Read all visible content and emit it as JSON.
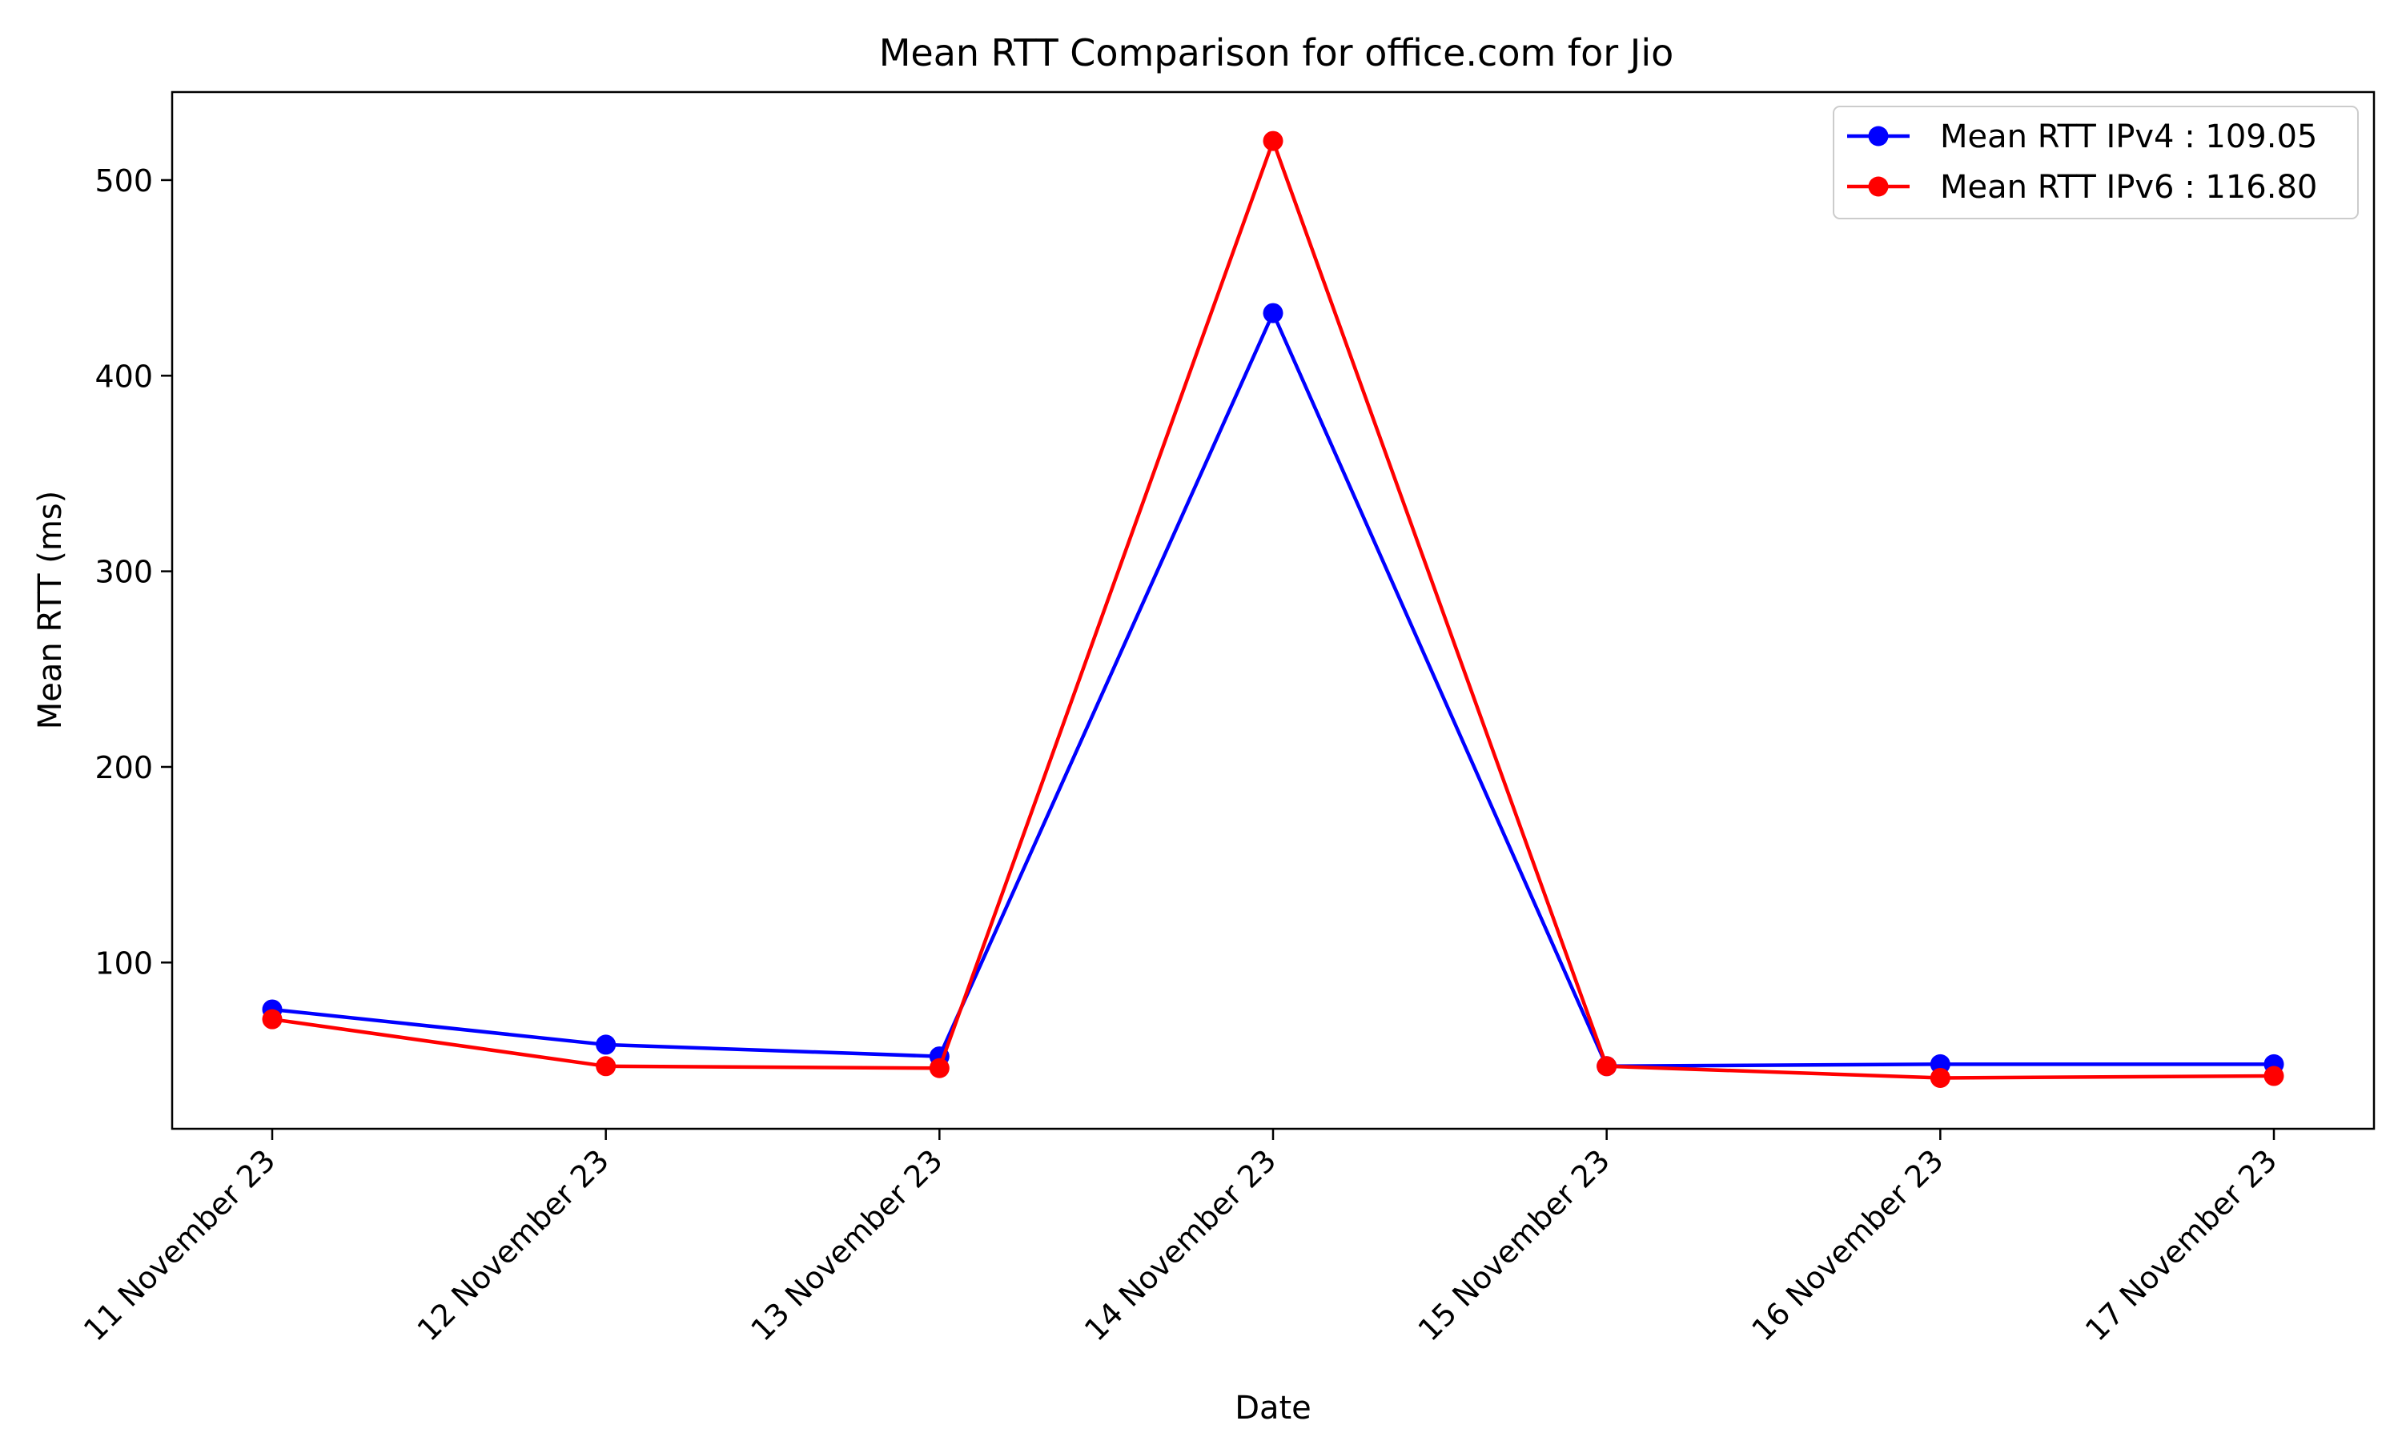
{
  "chart_data": {
    "type": "line",
    "title": "Mean RTT Comparison for office.com for Jio",
    "xlabel": "Date",
    "ylabel": "Mean RTT (ms)",
    "categories": [
      "11 November 23",
      "12 November 23",
      "13 November 23",
      "14 November 23",
      "15 November 23",
      "16 November 23",
      "17 November 23"
    ],
    "ylim": [
      15,
      545
    ],
    "yticks": [
      100,
      200,
      300,
      400,
      500
    ],
    "grid": false,
    "legend_position": "top-right",
    "series": [
      {
        "name": "Mean RTT IPv4 : 109.05",
        "color": "#0000ff",
        "values": [
          76,
          58,
          52,
          432,
          47,
          48,
          48
        ]
      },
      {
        "name": "Mean RTT IPv6 : 116.80",
        "color": "#ff0000",
        "values": [
          71,
          47,
          46,
          520,
          47,
          41,
          42
        ]
      }
    ]
  }
}
